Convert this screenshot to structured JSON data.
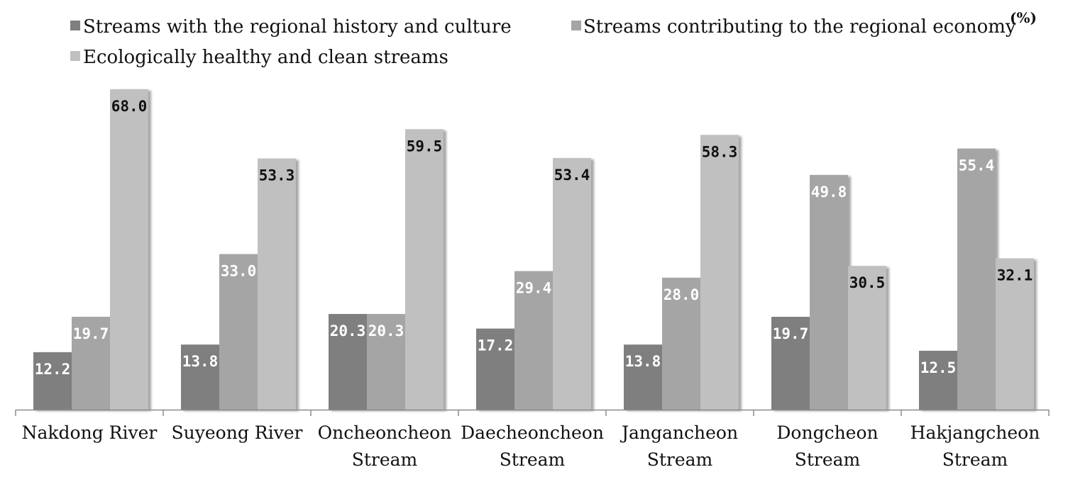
{
  "chart_data": {
    "type": "bar",
    "unit_label": "(%)",
    "categories": [
      [
        "Nakdong River"
      ],
      [
        "Suyeong River"
      ],
      [
        "Oncheoncheon",
        "Stream"
      ],
      [
        "Daecheoncheon",
        "Stream"
      ],
      [
        "Jangancheon",
        "Stream"
      ],
      [
        "Dongcheon",
        "Stream"
      ],
      [
        "Hakjangcheon",
        "Stream"
      ]
    ],
    "series": [
      {
        "name": "Streams with the regional history and culture",
        "color": "#7f7f7f",
        "label_color": "#ffffff",
        "values": [
          12.2,
          13.8,
          20.3,
          17.2,
          13.8,
          19.7,
          12.5
        ]
      },
      {
        "name": "Streams contributing to the regional economy",
        "color": "#a5a5a5",
        "label_color": "#ffffff",
        "values": [
          19.7,
          33.0,
          20.3,
          29.4,
          28.0,
          49.8,
          55.4
        ]
      },
      {
        "name": "Ecologically healthy and clean streams",
        "color": "#c0c0c0",
        "label_color": "#111111",
        "values": [
          68.0,
          53.3,
          59.5,
          53.4,
          58.3,
          30.5,
          32.1
        ]
      }
    ],
    "ylim": [
      0,
      70
    ],
    "grid": false,
    "legend_position": "top"
  }
}
